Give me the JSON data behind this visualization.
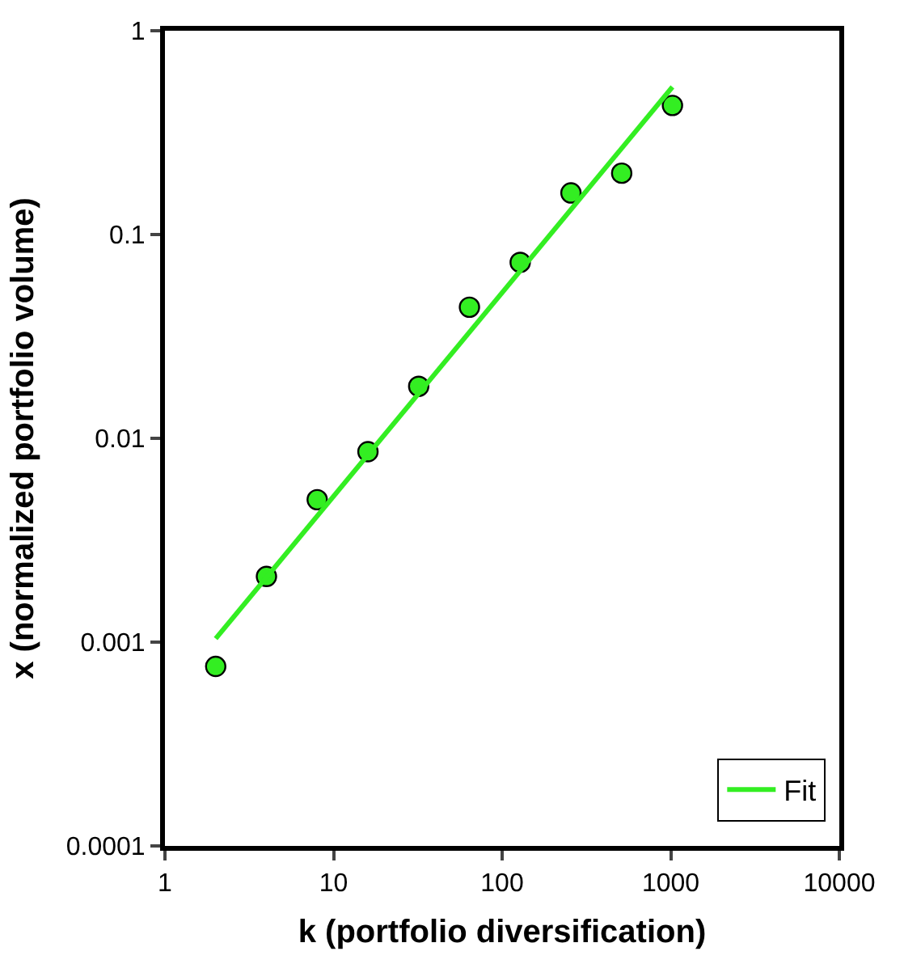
{
  "chart_data": {
    "type": "scatter",
    "xlabel": "k (portfolio diversification)",
    "ylabel": "x (normalized portfolio volume)",
    "log": "xy",
    "xlim": [
      1,
      10000
    ],
    "xticks": [
      1,
      10,
      100,
      1000,
      10000
    ],
    "ylim": [
      0.0001,
      1
    ],
    "yticks": [
      0.0001,
      0.001,
      0.01,
      0.1,
      1
    ],
    "legend": "bottom right",
    "series": [
      {
        "marker": "circle",
        "color": "#33ee22",
        "x": [
          2,
          4,
          8,
          16,
          32,
          64,
          128,
          256,
          512,
          1024
        ],
        "values": [
          0.00076,
          0.0021,
          0.005,
          0.0086,
          0.018,
          0.044,
          0.073,
          0.16,
          0.2,
          0.43
        ]
      },
      {
        "type": "line",
        "marker": "none",
        "name": "Fit",
        "color": "#33ee22",
        "x": [
          2,
          1024
        ],
        "values": [
          0.00104,
          0.53
        ]
      }
    ]
  }
}
